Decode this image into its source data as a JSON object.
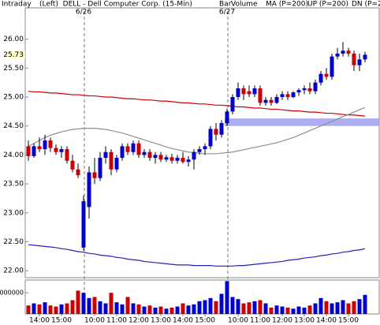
{
  "chart_data": {
    "type": "candlestick",
    "title": "Intraday",
    "subtitle": "(Left)  DELL - Dell Computer Corp. (15-Min)",
    "bar_label": "Bar",
    "categories": [
      null,
      null,
      "14:00",
      null,
      null,
      null,
      "15:00",
      null,
      null,
      null,
      null,
      null,
      "10:00",
      null,
      null,
      null,
      "11:00",
      null,
      null,
      null,
      "12:00",
      null,
      null,
      null,
      "13:00",
      null,
      null,
      null,
      "14:00",
      null,
      null,
      null,
      "15:00",
      null,
      null,
      null,
      null,
      null,
      "10:00",
      null,
      null,
      null,
      "11:00",
      null,
      null,
      null,
      "12:00",
      null,
      null,
      null,
      "13:00",
      null,
      null,
      null,
      "14:00",
      null,
      null,
      null,
      "15:00",
      null,
      null,
      null
    ],
    "dates": [
      null,
      null,
      null,
      null,
      null,
      null,
      null,
      null,
      null,
      null,
      "6/26",
      null,
      null,
      null,
      null,
      null,
      null,
      null,
      null,
      null,
      null,
      null,
      null,
      null,
      null,
      null,
      null,
      null,
      null,
      null,
      null,
      null,
      null,
      null,
      null,
      null,
      "6/27",
      null,
      null,
      null,
      null,
      null,
      null,
      null,
      null,
      null,
      null,
      null,
      null,
      null,
      null,
      null,
      null,
      null,
      null,
      null,
      null,
      null,
      null,
      null,
      null,
      null
    ],
    "open": [
      24.15,
      23.98,
      24.15,
      24.1,
      24.25,
      24.12,
      24.05,
      24.1,
      23.9,
      23.75,
      22.4,
      23.1,
      23.7,
      23.6,
      23.95,
      24.05,
      23.75,
      23.95,
      24.15,
      24.05,
      24.2,
      24.0,
      24.05,
      23.95,
      24.0,
      23.92,
      23.96,
      23.9,
      23.95,
      23.88,
      23.92,
      24.05,
      24.1,
      24.15,
      24.45,
      24.35,
      24.55,
      24.75,
      25.0,
      25.15,
      25.1,
      25.05,
      25.15,
      24.9,
      24.95,
      24.9,
      25.0,
      25.05,
      25.0,
      25.08,
      25.12,
      25.15,
      25.1,
      25.25,
      25.4,
      25.35,
      25.7,
      25.75,
      25.8,
      25.75,
      25.55,
      25.65
    ],
    "high": [
      24.25,
      24.2,
      24.3,
      24.35,
      24.3,
      24.18,
      24.15,
      24.15,
      24.0,
      23.85,
      23.3,
      23.8,
      23.95,
      24.05,
      24.15,
      24.1,
      24.0,
      24.2,
      24.2,
      24.25,
      24.25,
      24.1,
      24.1,
      24.05,
      24.05,
      24.0,
      24.02,
      24.0,
      24.05,
      23.98,
      24.1,
      24.15,
      24.2,
      24.5,
      24.55,
      24.6,
      24.8,
      25.05,
      25.25,
      25.2,
      25.2,
      25.2,
      25.2,
      25.0,
      25.0,
      25.05,
      25.1,
      25.1,
      25.1,
      25.15,
      25.2,
      25.25,
      25.3,
      25.45,
      25.5,
      25.75,
      25.85,
      25.95,
      25.85,
      25.8,
      25.75,
      25.78
    ],
    "low": [
      23.9,
      23.95,
      24.05,
      24.0,
      24.05,
      24.0,
      23.95,
      23.85,
      23.7,
      23.6,
      22.35,
      22.9,
      23.5,
      23.55,
      23.85,
      23.65,
      23.7,
      23.9,
      24.0,
      24.0,
      23.95,
      23.95,
      23.9,
      23.85,
      23.88,
      23.88,
      23.85,
      23.85,
      23.85,
      23.8,
      23.75,
      24.0,
      24.0,
      24.1,
      24.25,
      24.3,
      24.5,
      24.7,
      24.95,
      24.95,
      25.0,
      25.0,
      24.85,
      24.85,
      24.85,
      24.88,
      24.95,
      24.95,
      24.98,
      25.02,
      25.05,
      25.05,
      25.05,
      25.2,
      25.3,
      25.3,
      25.65,
      25.7,
      25.7,
      25.45,
      25.45,
      25.6
    ],
    "close": [
      23.98,
      24.15,
      24.1,
      24.25,
      24.12,
      24.05,
      24.1,
      23.9,
      23.75,
      23.65,
      23.2,
      23.7,
      23.6,
      23.95,
      24.05,
      23.75,
      23.95,
      24.15,
      24.05,
      24.2,
      24.0,
      24.05,
      23.95,
      24.0,
      23.92,
      23.96,
      23.9,
      23.95,
      23.88,
      23.92,
      24.05,
      24.1,
      24.15,
      24.45,
      24.35,
      24.55,
      24.75,
      25.0,
      25.15,
      25.05,
      25.05,
      25.15,
      24.9,
      24.95,
      24.9,
      25.0,
      25.05,
      25.0,
      25.08,
      25.12,
      25.15,
      25.1,
      25.25,
      25.4,
      25.35,
      25.7,
      25.75,
      25.8,
      25.75,
      25.55,
      25.65,
      25.73
    ],
    "up_color": "#0000cc",
    "down_color": "#cc0000",
    "overlays": [
      {
        "name": "MA (P=200)",
        "legend_color": "#cc0000",
        "color": "#cc0000",
        "values": [
          25.1,
          25.09,
          25.09,
          25.08,
          25.07,
          25.07,
          25.06,
          25.05,
          25.04,
          25.04,
          25.03,
          25.02,
          25.02,
          25.01,
          25.0,
          25.0,
          24.99,
          24.98,
          24.97,
          24.97,
          24.96,
          24.95,
          24.95,
          24.94,
          24.93,
          24.93,
          24.92,
          24.91,
          24.9,
          24.9,
          24.89,
          24.88,
          24.88,
          24.87,
          24.86,
          24.86,
          24.85,
          24.84,
          24.83,
          24.83,
          24.82,
          24.81,
          24.81,
          24.8,
          24.79,
          24.79,
          24.78,
          24.77,
          24.76,
          24.76,
          24.75,
          24.74,
          24.74,
          24.73,
          24.72,
          24.72,
          24.71,
          24.7,
          24.69,
          24.69,
          24.68,
          24.67
        ]
      },
      {
        "name": "UP (P=200)",
        "legend_color": "#00aa00",
        "color": "#909090",
        "values": [
          24.15,
          24.2,
          24.25,
          24.3,
          24.34,
          24.37,
          24.4,
          24.42,
          24.44,
          24.45,
          24.46,
          24.46,
          24.46,
          24.45,
          24.44,
          24.42,
          24.4,
          24.38,
          24.35,
          24.32,
          24.29,
          24.26,
          24.23,
          24.2,
          24.17,
          24.14,
          24.11,
          24.09,
          24.07,
          24.05,
          24.04,
          24.03,
          24.02,
          24.02,
          24.02,
          24.03,
          24.04,
          24.05,
          24.07,
          24.09,
          24.11,
          24.13,
          24.15,
          24.17,
          24.19,
          24.21,
          24.24,
          24.27,
          24.3,
          24.34,
          24.38,
          24.42,
          24.46,
          24.5,
          24.54,
          24.58,
          24.62,
          24.66,
          24.7,
          24.74,
          24.78,
          24.82
        ]
      },
      {
        "name": "DN (P=200)",
        "legend_color": "#0000cc",
        "color": "#2222bb",
        "values": [
          22.45,
          22.44,
          22.43,
          22.42,
          22.41,
          22.4,
          22.38,
          22.37,
          22.35,
          22.33,
          22.32,
          22.3,
          22.29,
          22.27,
          22.26,
          22.25,
          22.23,
          22.22,
          22.2,
          22.19,
          22.18,
          22.16,
          22.15,
          22.14,
          22.13,
          22.12,
          22.11,
          22.1,
          22.1,
          22.1,
          22.09,
          22.09,
          22.09,
          22.09,
          22.08,
          22.08,
          22.08,
          22.08,
          22.09,
          22.09,
          22.1,
          22.11,
          22.12,
          22.13,
          22.14,
          22.15,
          22.16,
          22.18,
          22.19,
          22.2,
          22.22,
          22.23,
          22.24,
          22.26,
          22.27,
          22.29,
          22.3,
          22.32,
          22.33,
          22.35,
          22.36,
          22.38
        ]
      }
    ],
    "highlight_band": {
      "range": [
        24.5,
        24.63
      ],
      "color": "#9999ee"
    },
    "ylim": [
      21.88,
      26.54
    ],
    "yticks": [
      {
        "value": 22,
        "label": "22.00"
      },
      {
        "value": 22.5,
        "label": "22.50"
      },
      {
        "value": 23,
        "label": "23.00"
      },
      {
        "value": 23.5,
        "label": "23.50"
      },
      {
        "value": 24,
        "label": "24.00"
      },
      {
        "value": 24.5,
        "label": "24.50"
      },
      {
        "value": 25,
        "label": "25.00"
      },
      {
        "value": 25.5,
        "label": "25.50"
      },
      {
        "value": 26,
        "label": "26.00"
      }
    ],
    "last_price": 25.73,
    "volume": {
      "name": "Volume",
      "legend_color": "#00aa00",
      "values": [
        800000,
        1000000,
        900000,
        1100000,
        800000,
        700000,
        900000,
        1000000,
        1300000,
        2200000,
        2000000,
        1500000,
        1600000,
        1200000,
        1000000,
        2000000,
        1100000,
        900000,
        1600000,
        1000000,
        900000,
        700000,
        800000,
        600000,
        700000,
        500000,
        600000,
        700000,
        1000000,
        800000,
        900000,
        1200000,
        1300000,
        1500000,
        1200000,
        1900000,
        3100000,
        1600000,
        1400000,
        1000000,
        1100000,
        1200000,
        1300000,
        1000000,
        600000,
        800000,
        700000,
        600000,
        500000,
        700000,
        600000,
        800000,
        1000000,
        1500000,
        1200000,
        1000000,
        1100000,
        1300000,
        1000000,
        1200000,
        1400000,
        1800000
      ],
      "ylim": [
        0,
        3200000
      ],
      "yticks": [
        2000000
      ]
    }
  }
}
